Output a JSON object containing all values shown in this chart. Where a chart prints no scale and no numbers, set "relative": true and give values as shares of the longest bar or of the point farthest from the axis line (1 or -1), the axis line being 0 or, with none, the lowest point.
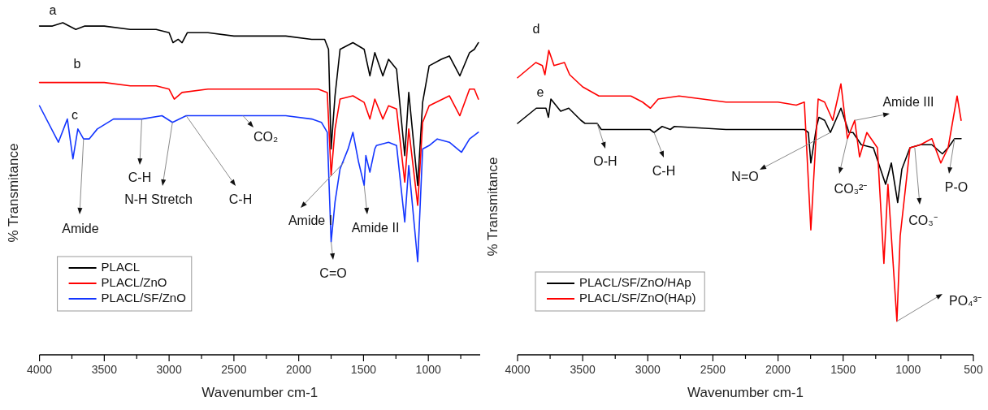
{
  "chart_data": [
    {
      "type": "line",
      "relative": true,
      "xlabel": "Wavenumber cm-1",
      "ylabel": "% Transmitance",
      "xlim": [
        4000,
        600
      ],
      "xticks": [
        4000,
        {
          "value": 3750,
          "label": null
        },
        3500,
        {
          "value": 3250,
          "label": null
        },
        3000,
        {
          "value": 2750,
          "label": null
        },
        2500,
        {
          "value": 2250,
          "label": null
        },
        2000,
        {
          "value": 1750,
          "label": null
        },
        1500,
        {
          "value": 1250,
          "label": null
        },
        1000,
        {
          "value": 750,
          "label": null
        }
      ],
      "legend": "bottom left",
      "line_style": "solid",
      "marker": "none",
      "series": [
        {
          "name": "PLACL",
          "color": "#000000",
          "x": [
            4000,
            3900,
            3820,
            3720,
            3650,
            3500,
            3300,
            3100,
            3000,
            2970,
            2930,
            2900,
            2860,
            2700,
            2500,
            2300,
            2100,
            1900,
            1800,
            1770,
            1750,
            1720,
            1681,
            1582,
            1495,
            1451,
            1413,
            1351,
            1307,
            1245,
            1182,
            1151,
            1082,
            1044,
            994,
            900,
            838,
            757,
            682,
            645,
            614
          ],
          "values": [
            0.99,
            0.99,
            1.0,
            0.98,
            0.99,
            0.99,
            0.98,
            0.98,
            0.97,
            0.94,
            0.95,
            0.94,
            0.97,
            0.97,
            0.96,
            0.96,
            0.96,
            0.95,
            0.95,
            0.92,
            0.62,
            0.78,
            0.92,
            0.94,
            0.92,
            0.84,
            0.91,
            0.84,
            0.89,
            0.86,
            0.6,
            0.79,
            0.51,
            0.76,
            0.87,
            0.89,
            0.9,
            0.84,
            0.91,
            0.92,
            0.94
          ]
        },
        {
          "name": "PLACL/ZnO",
          "color": "#ff0000",
          "x": [
            4000,
            3850,
            3700,
            3500,
            3300,
            3100,
            3000,
            2960,
            2900,
            2700,
            2400,
            2100,
            1850,
            1780,
            1750,
            1720,
            1681,
            1582,
            1495,
            1451,
            1413,
            1351,
            1307,
            1245,
            1182,
            1151,
            1082,
            1044,
            994,
            838,
            757,
            682,
            645,
            614
          ],
          "values": [
            0.82,
            0.82,
            0.82,
            0.82,
            0.81,
            0.81,
            0.8,
            0.77,
            0.79,
            0.8,
            0.8,
            0.8,
            0.8,
            0.79,
            0.54,
            0.68,
            0.77,
            0.78,
            0.76,
            0.71,
            0.77,
            0.71,
            0.75,
            0.74,
            0.52,
            0.68,
            0.45,
            0.7,
            0.75,
            0.78,
            0.72,
            0.8,
            0.8,
            0.77
          ]
        },
        {
          "name": "PLACL/SF/ZnO",
          "color": "#1436ff",
          "x": [
            4000,
            3854,
            3785,
            3742,
            3704,
            3660,
            3617,
            3554,
            3429,
            3211,
            3055,
            2974,
            2868,
            2700,
            2400,
            2100,
            1900,
            1825,
            1780,
            1750,
            1720,
            1681,
            1619,
            1582,
            1538,
            1495,
            1482,
            1451,
            1413,
            1401,
            1307,
            1245,
            1182,
            1151,
            1082,
            1044,
            994,
            931,
            838,
            744,
            682,
            614
          ],
          "values": [
            0.75,
            0.64,
            0.71,
            0.59,
            0.68,
            0.65,
            0.65,
            0.68,
            0.71,
            0.71,
            0.72,
            0.7,
            0.72,
            0.72,
            0.72,
            0.72,
            0.71,
            0.7,
            0.67,
            0.34,
            0.46,
            0.56,
            0.62,
            0.67,
            0.58,
            0.51,
            0.6,
            0.55,
            0.62,
            0.63,
            0.64,
            0.63,
            0.4,
            0.57,
            0.28,
            0.62,
            0.63,
            0.65,
            0.64,
            0.61,
            0.65,
            0.67
          ]
        }
      ],
      "annotations": [
        "a",
        "b",
        "c",
        {
          "text": "Amide",
          "x": 3660,
          "y": 0.65
        },
        {
          "text": "C-H",
          "x": 3211,
          "y": 0.71
        },
        {
          "text": "N-H Stretch",
          "x": 2974,
          "y": 0.7
        },
        {
          "text": "C-H",
          "x": 2868,
          "y": 0.72
        },
        {
          "text": "CO₂",
          "x": 2430,
          "y": 0.72
        },
        {
          "text": "Amide I",
          "x": 1650,
          "y": 0.58
        },
        {
          "text": "Amide II",
          "x": 1495,
          "y": 0.51
        },
        {
          "text": "C=O",
          "x": 1750,
          "y": 0.34
        }
      ]
    },
    {
      "type": "line",
      "relative": true,
      "xlabel": "Wavenumber cm-1",
      "ylabel": "% Transmitance",
      "xlim": [
        4000,
        500
      ],
      "xticks": [
        4000,
        {
          "value": 3750,
          "label": null
        },
        3500,
        {
          "value": 3250,
          "label": null
        },
        3000,
        {
          "value": 2750,
          "label": null
        },
        2500,
        {
          "value": 2250,
          "label": null
        },
        2000,
        {
          "value": 1750,
          "label": null
        },
        1500,
        {
          "value": 1250,
          "label": null
        },
        1000,
        {
          "value": 750,
          "label": null
        },
        500
      ],
      "legend": "bottom left",
      "line_style": "solid",
      "marker": "none",
      "series": [
        {
          "name": "PLACL/SF/ZnO/HAp",
          "color": "#000000",
          "x": [
            4000,
            3856,
            3782,
            3763,
            3744,
            3669,
            3607,
            3513,
            3482,
            3389,
            3357,
            2983,
            2952,
            2890,
            2827,
            2796,
            2400,
            2000,
            1798,
            1767,
            1748,
            1704,
            1686,
            1642,
            1598,
            1517,
            1455,
            1424,
            1361,
            1268,
            1174,
            1130,
            1081,
            1049,
            987,
            906,
            819,
            738,
            694,
            644,
            594
          ],
          "values": [
            0.76,
            0.81,
            0.81,
            0.78,
            0.84,
            0.8,
            0.81,
            0.77,
            0.76,
            0.76,
            0.74,
            0.74,
            0.73,
            0.75,
            0.74,
            0.75,
            0.74,
            0.74,
            0.74,
            0.73,
            0.63,
            0.75,
            0.78,
            0.77,
            0.73,
            0.81,
            0.73,
            0.73,
            0.69,
            0.68,
            0.56,
            0.63,
            0.5,
            0.61,
            0.68,
            0.69,
            0.69,
            0.66,
            0.68,
            0.71,
            0.71
          ]
        },
        {
          "name": "PLACL/SF/ZnO(HAp)",
          "color": "#ff0000",
          "x": [
            4000,
            3860,
            3810,
            3790,
            3760,
            3720,
            3640,
            3600,
            3500,
            3375,
            3130,
            3040,
            2980,
            2920,
            2760,
            2400,
            2000,
            1860,
            1798,
            1748,
            1692,
            1642,
            1580,
            1517,
            1467,
            1411,
            1374,
            1318,
            1237,
            1187,
            1156,
            1087,
            1062,
            987,
            906,
            819,
            750,
            694,
            625,
            594
          ],
          "values": [
            0.91,
            0.96,
            0.95,
            0.92,
            1.0,
            0.95,
            0.96,
            0.92,
            0.88,
            0.85,
            0.85,
            0.83,
            0.81,
            0.84,
            0.85,
            0.83,
            0.83,
            0.82,
            0.83,
            0.41,
            0.84,
            0.83,
            0.77,
            0.89,
            0.71,
            0.77,
            0.65,
            0.73,
            0.68,
            0.3,
            0.56,
            0.11,
            0.39,
            0.68,
            0.69,
            0.71,
            0.63,
            0.68,
            0.85,
            0.77
          ]
        }
      ],
      "annotations": [
        "d",
        "e",
        {
          "text": "O-H",
          "x": 3389,
          "y": 0.76
        },
        {
          "text": "C-H",
          "x": 2952,
          "y": 0.73
        },
        {
          "text": "N=O",
          "x": 1598,
          "y": 0.73
        },
        {
          "text": "Amide III",
          "x": 1411,
          "y": 0.77
        },
        {
          "text": "CO₃²⁻",
          "x": 1467,
          "y": 0.71
        },
        {
          "text": "CO₃⁻",
          "x": 950,
          "y": 0.68
        },
        {
          "text": "P-O",
          "x": 644,
          "y": 0.71
        },
        {
          "text": "PO₄³⁻",
          "x": 1087,
          "y": 0.11
        }
      ]
    }
  ]
}
